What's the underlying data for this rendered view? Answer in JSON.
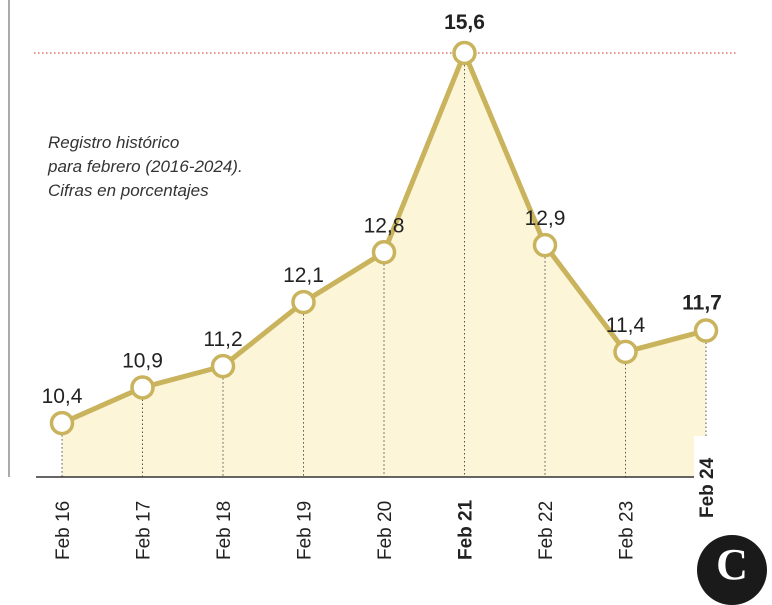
{
  "note": {
    "lines": [
      "Registro histórico",
      "para febrero (2016-2024).",
      "Cifras en porcentajes"
    ]
  },
  "logo": {
    "letter": "C"
  },
  "colors": {
    "line": "#c9b35c",
    "fill": "#fdf5d8",
    "marker_fill": "#ffffff",
    "reference_line": "#d9534f",
    "axis": "#333333"
  },
  "chart_data": {
    "type": "line",
    "title": "",
    "xlabel": "",
    "ylabel": "",
    "categories": [
      "Feb 16",
      "Feb 17",
      "Feb 18",
      "Feb 19",
      "Feb 20",
      "Feb 21",
      "Feb 22",
      "Feb 23",
      "Feb 24"
    ],
    "values": [
      10.4,
      10.9,
      11.2,
      12.1,
      12.8,
      15.6,
      12.9,
      11.4,
      11.7
    ],
    "value_labels": [
      "10,4",
      "10,9",
      "11,2",
      "12,1",
      "12,8",
      "15,6",
      "12,9",
      "11,4",
      "11,7"
    ],
    "highlighted": [
      "Feb 21",
      "Feb 24"
    ],
    "reference_line": {
      "y": 15.6,
      "style": "dotted"
    },
    "ylim": [
      9.6,
      15.6
    ],
    "area_fill": true,
    "grid": false,
    "legend": "none"
  }
}
